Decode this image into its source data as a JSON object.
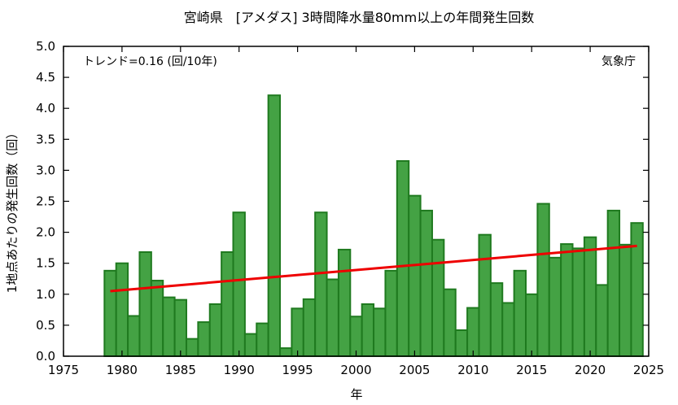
{
  "chart_data": {
    "type": "bar",
    "title": "宮崎県　[アメダス] 3時間降水量80mm以上の年間発生回数",
    "xlabel": "年",
    "ylabel": "1地点あたりの発生回数（回）",
    "trend_label": "トレンド=0.16 (回/10年)",
    "source_label": "気象庁",
    "xlim": [
      1975,
      2025
    ],
    "ylim": [
      0,
      5.0
    ],
    "x_ticks": [
      1975,
      1980,
      1985,
      1990,
      1995,
      2000,
      2005,
      2010,
      2015,
      2020,
      2025
    ],
    "y_ticks": [
      0.0,
      0.5,
      1.0,
      1.5,
      2.0,
      2.5,
      3.0,
      3.5,
      4.0,
      4.5,
      5.0
    ],
    "y_tick_labels": [
      "0.0",
      "0.5",
      "1.0",
      "1.5",
      "2.0",
      "2.5",
      "3.0",
      "3.5",
      "4.0",
      "4.5",
      "5.0"
    ],
    "grid": false,
    "years": [
      1979,
      1980,
      1981,
      1982,
      1983,
      1984,
      1985,
      1986,
      1987,
      1988,
      1989,
      1990,
      1991,
      1992,
      1993,
      1994,
      1995,
      1996,
      1997,
      1998,
      1999,
      2000,
      2001,
      2002,
      2003,
      2004,
      2005,
      2006,
      2007,
      2008,
      2009,
      2010,
      2011,
      2012,
      2013,
      2014,
      2015,
      2016,
      2017,
      2018,
      2019,
      2020,
      2021,
      2022,
      2023,
      2024
    ],
    "values": [
      1.38,
      1.5,
      0.65,
      1.68,
      1.22,
      0.95,
      0.91,
      0.28,
      0.55,
      0.84,
      1.68,
      2.32,
      0.36,
      0.53,
      4.21,
      0.13,
      0.77,
      0.92,
      2.32,
      1.24,
      1.72,
      0.64,
      0.84,
      0.77,
      1.38,
      3.15,
      2.59,
      2.35,
      1.88,
      1.08,
      0.42,
      0.78,
      1.96,
      1.18,
      0.86,
      1.38,
      1.0,
      2.46,
      1.59,
      1.81,
      1.74,
      1.92,
      1.15,
      2.35,
      1.8,
      2.15
    ],
    "trend": {
      "x": [
        1979,
        2024
      ],
      "y": [
        1.05,
        1.78
      ]
    },
    "colors": {
      "bar_fill": "#44a244",
      "bar_edge": "#1f7a1f",
      "trend": "#ee0000"
    }
  }
}
